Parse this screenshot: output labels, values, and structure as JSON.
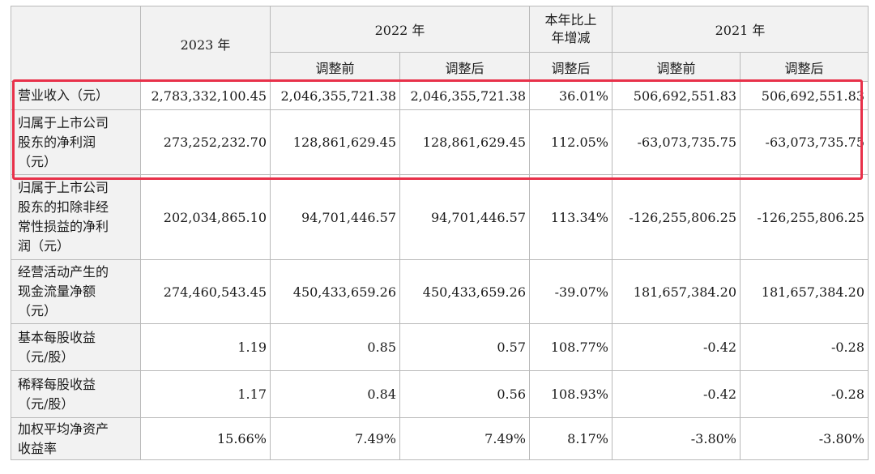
{
  "header": {
    "year_2023": "2023 年",
    "year_2022": "2022 年",
    "yoy_change": "本年比上年增减",
    "yoy_change_lines": [
      "本年比上",
      "年增减"
    ],
    "year_2021": "2021 年",
    "before_adjust": "调整前",
    "after_adjust": "调整后"
  },
  "rows": [
    {
      "label_lines": [
        "营业收入（元）"
      ],
      "values": [
        "2,783,332,100.45",
        "2,046,355,721.38",
        "2,046,355,721.38",
        "36.01%",
        "506,692,551.83",
        "506,692,551.83"
      ]
    },
    {
      "label_lines": [
        "归属于上市公司",
        "股东的净利润",
        "（元）"
      ],
      "values": [
        "273,252,232.70",
        "128,861,629.45",
        "128,861,629.45",
        "112.05%",
        "-63,073,735.75",
        "-63,073,735.75"
      ]
    },
    {
      "label_lines": [
        "归属于上市公司",
        "股东的扣除非经",
        "常性损益的净利",
        "润（元）"
      ],
      "values": [
        "202,034,865.10",
        "94,701,446.57",
        "94,701,446.57",
        "113.34%",
        "-126,255,806.25",
        "-126,255,806.25"
      ]
    },
    {
      "label_lines": [
        "经营活动产生的",
        "现金流量净额",
        "（元）"
      ],
      "values": [
        "274,460,543.45",
        "450,433,659.26",
        "450,433,659.26",
        "-39.07%",
        "181,657,384.20",
        "181,657,384.20"
      ]
    },
    {
      "label_lines": [
        "基本每股收益",
        "（元/股）"
      ],
      "values": [
        "1.19",
        "0.85",
        "0.57",
        "108.77%",
        "-0.42",
        "-0.28"
      ]
    },
    {
      "label_lines": [
        "稀释每股收益",
        "（元/股）"
      ],
      "values": [
        "1.17",
        "0.84",
        "0.56",
        "108.93%",
        "-0.42",
        "-0.28"
      ]
    },
    {
      "label_lines": [
        "加权平均净资产",
        "收益率"
      ],
      "values": [
        "15.66%",
        "7.49%",
        "7.49%",
        "8.17%",
        "-3.80%",
        "-3.80%"
      ]
    }
  ],
  "highlight_color": "#e8314a"
}
